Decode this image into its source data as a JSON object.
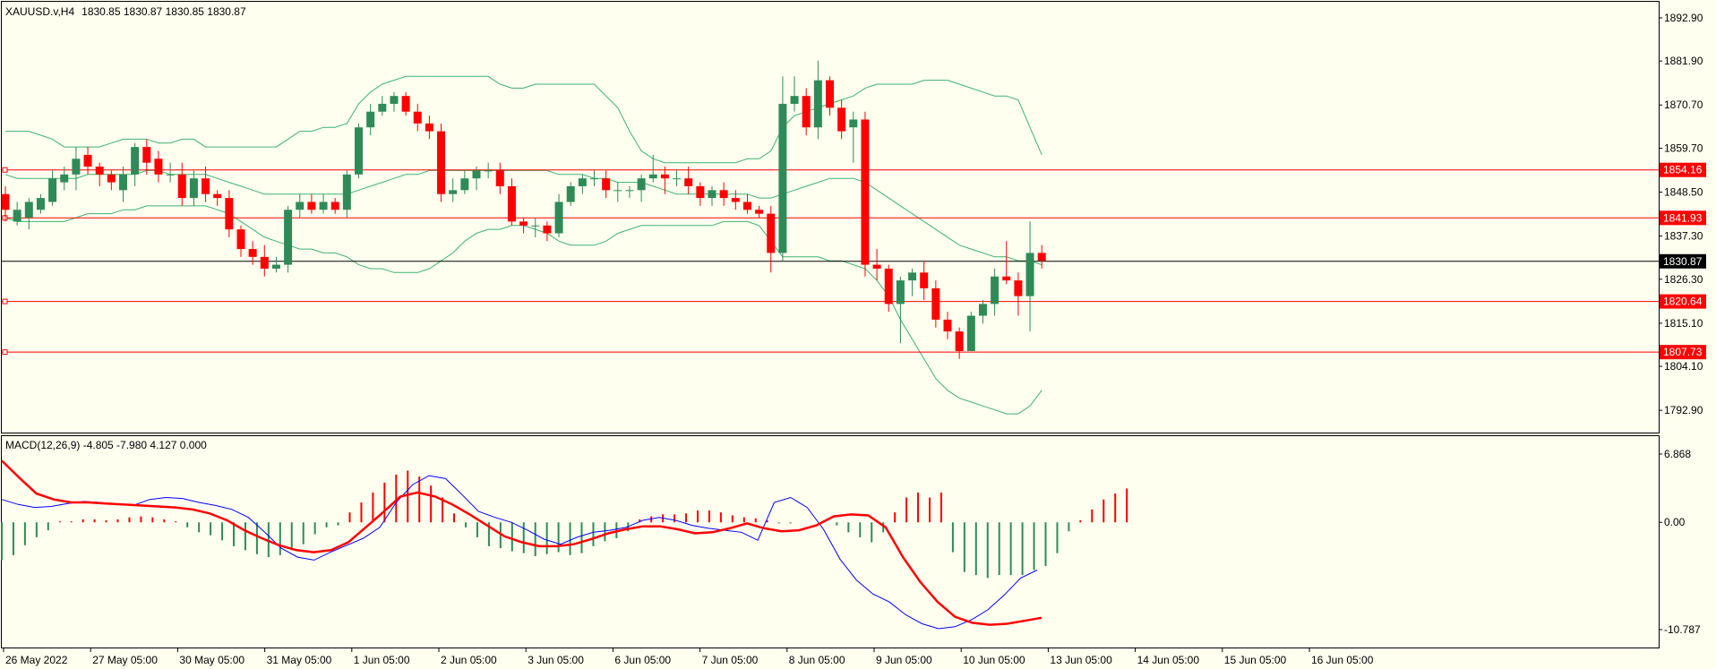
{
  "header": {
    "symbol": "XAUUSD.v,H4",
    "ohlc": "1830.85 1830.87 1830.85 1830.87"
  },
  "macd_label": "MACD(12,26,9) -4.805 -7.980 4.127 0.000",
  "colors": {
    "background": "#fffff0",
    "bull": "#2e8b57",
    "bear": "#ff0000",
    "bands": "#3cb371",
    "level": "#ff0000",
    "macd_line": "#0000ff",
    "signal_line": "#ff0000"
  },
  "chart_data": [
    {
      "type": "candlestick",
      "title": "XAUUSD.v,H4",
      "ylim": [
        1787,
        1897
      ],
      "y_ticks": [
        "1892.90",
        "1881.90",
        "1870.70",
        "1859.70",
        "1848.50",
        "1837.30",
        "1826.30",
        "1815.10",
        "1804.10",
        "1792.90"
      ],
      "x_tick_labels": [
        "26 May 2022",
        "27 May 05:00",
        "30 May 05:00",
        "31 May 05:00",
        "1 Jun 05:00",
        "2 Jun 05:00",
        "3 Jun 05:00",
        "6 Jun 05:00",
        "7 Jun 05:00",
        "8 Jun 05:00",
        "9 Jun 05:00",
        "10 Jun 05:00",
        "13 Jun 05:00",
        "14 Jun 05:00",
        "15 Jun 05:00",
        "16 Jun 05:00"
      ],
      "current_price": "1830.87",
      "levels": [
        "1854.16",
        "1841.93",
        "1820.64",
        "1807.73"
      ],
      "candles": [
        [
          1848,
          1844,
          1850,
          1841
        ],
        [
          1841,
          1844,
          1846,
          1840
        ],
        [
          1842,
          1846,
          1847,
          1839
        ],
        [
          1844,
          1847,
          1848,
          1843
        ],
        [
          1846,
          1852,
          1854,
          1845
        ],
        [
          1851,
          1853,
          1855,
          1849
        ],
        [
          1853,
          1857,
          1860,
          1849
        ],
        [
          1858,
          1855,
          1860,
          1853
        ],
        [
          1855,
          1853,
          1856,
          1850
        ],
        [
          1853,
          1851,
          1854,
          1849
        ],
        [
          1849,
          1853,
          1855,
          1846
        ],
        [
          1853,
          1860,
          1861,
          1850
        ],
        [
          1860,
          1856,
          1862,
          1853
        ],
        [
          1857,
          1853,
          1859,
          1851
        ],
        [
          1853,
          1853,
          1856,
          1851
        ],
        [
          1853,
          1847,
          1856,
          1845
        ],
        [
          1847,
          1852,
          1854,
          1845
        ],
        [
          1852,
          1848,
          1855,
          1846
        ],
        [
          1848,
          1847,
          1849,
          1845
        ],
        [
          1847,
          1839,
          1849,
          1837
        ],
        [
          1839,
          1834,
          1840,
          1832
        ],
        [
          1834,
          1832,
          1836,
          1830
        ],
        [
          1832,
          1829,
          1835,
          1827
        ],
        [
          1829,
          1830,
          1832,
          1828
        ],
        [
          1830,
          1844,
          1845,
          1828
        ],
        [
          1844,
          1846,
          1848,
          1842
        ],
        [
          1846,
          1844,
          1848,
          1843
        ],
        [
          1844,
          1846,
          1848,
          1843
        ],
        [
          1846,
          1844,
          1847,
          1843
        ],
        [
          1844,
          1853,
          1854,
          1842
        ],
        [
          1853,
          1865,
          1866,
          1852
        ],
        [
          1865,
          1869,
          1871,
          1863
        ],
        [
          1869,
          1871,
          1873,
          1868
        ],
        [
          1871,
          1873,
          1874,
          1869
        ],
        [
          1873,
          1869,
          1874,
          1868
        ],
        [
          1869,
          1866,
          1871,
          1864
        ],
        [
          1866,
          1864,
          1868,
          1862
        ],
        [
          1864,
          1848,
          1866,
          1846
        ],
        [
          1848,
          1849,
          1852,
          1846
        ],
        [
          1849,
          1852,
          1854,
          1848
        ],
        [
          1852,
          1854,
          1855,
          1849
        ],
        [
          1854,
          1854,
          1856,
          1852
        ],
        [
          1854,
          1850,
          1856,
          1848
        ],
        [
          1850,
          1841,
          1852,
          1840
        ],
        [
          1841,
          1840,
          1842,
          1838
        ],
        [
          1840,
          1840,
          1842,
          1837
        ],
        [
          1840,
          1838,
          1841,
          1836
        ],
        [
          1838,
          1846,
          1848,
          1837
        ],
        [
          1846,
          1850,
          1851,
          1845
        ],
        [
          1850,
          1852,
          1853,
          1848
        ],
        [
          1852,
          1852,
          1854,
          1850
        ],
        [
          1852,
          1849,
          1854,
          1847
        ],
        [
          1849,
          1849,
          1851,
          1846
        ],
        [
          1849,
          1849,
          1850,
          1847
        ],
        [
          1849,
          1852,
          1853,
          1846
        ],
        [
          1852,
          1853,
          1858,
          1851
        ],
        [
          1853,
          1852,
          1855,
          1848
        ],
        [
          1852,
          1852,
          1854,
          1850
        ],
        [
          1852,
          1850,
          1855,
          1848
        ],
        [
          1850,
          1847,
          1851,
          1845
        ],
        [
          1847,
          1849,
          1850,
          1845
        ],
        [
          1849,
          1847,
          1851,
          1845
        ],
        [
          1847,
          1846,
          1849,
          1844
        ],
        [
          1846,
          1844,
          1848,
          1843
        ],
        [
          1844,
          1843,
          1845,
          1842
        ],
        [
          1843,
          1833,
          1845,
          1828
        ],
        [
          1833,
          1871,
          1878,
          1831
        ],
        [
          1871,
          1873,
          1878,
          1869
        ],
        [
          1873,
          1865,
          1875,
          1863
        ],
        [
          1865,
          1877,
          1882,
          1862
        ],
        [
          1877,
          1870,
          1878,
          1868
        ],
        [
          1870,
          1864,
          1872,
          1862
        ],
        [
          1865,
          1867,
          1869,
          1856
        ],
        [
          1867,
          1830,
          1869,
          1827
        ],
        [
          1830,
          1829,
          1834,
          1826
        ],
        [
          1829,
          1820,
          1830,
          1818
        ],
        [
          1820,
          1826,
          1827,
          1810
        ],
        [
          1826,
          1828,
          1829,
          1822
        ],
        [
          1828,
          1824,
          1831,
          1821
        ],
        [
          1824,
          1816,
          1826,
          1814
        ],
        [
          1816,
          1813,
          1818,
          1811
        ],
        [
          1813,
          1808,
          1814,
          1806
        ],
        [
          1808,
          1817,
          1818,
          1808
        ],
        [
          1817,
          1820,
          1821,
          1815
        ],
        [
          1820,
          1827,
          1829,
          1817
        ],
        [
          1827,
          1826,
          1836,
          1825
        ],
        [
          1826,
          1822,
          1828,
          1817
        ],
        [
          1822,
          1833,
          1841,
          1813
        ],
        [
          1833,
          1831,
          1835,
          1829
        ]
      ],
      "bollinger": {
        "upper": [
          1864,
          1864,
          1864,
          1863,
          1862,
          1860,
          1860,
          1860,
          1860,
          1861,
          1862,
          1862,
          1862,
          1861,
          1861,
          1862,
          1862,
          1860,
          1860,
          1860,
          1860,
          1860,
          1860,
          1860,
          1862,
          1864,
          1864,
          1865,
          1865,
          1866,
          1871,
          1874,
          1876,
          1877,
          1878,
          1878,
          1878,
          1878,
          1878,
          1878,
          1878,
          1878,
          1876,
          1875,
          1875,
          1876,
          1876,
          1876,
          1876,
          1876,
          1876,
          1873,
          1870,
          1864,
          1859,
          1857,
          1856,
          1856,
          1856,
          1856,
          1856,
          1856,
          1856,
          1857,
          1857,
          1859,
          1865,
          1868,
          1869,
          1870,
          1871,
          1872,
          1873,
          1875,
          1876,
          1876,
          1876,
          1876,
          1877,
          1877,
          1877,
          1876,
          1875,
          1874,
          1873,
          1873,
          1872,
          1865,
          1858
        ],
        "middle": [
          1853,
          1852,
          1852,
          1852,
          1852,
          1852,
          1852,
          1853,
          1853,
          1853,
          1853,
          1853,
          1854,
          1854,
          1853,
          1853,
          1853,
          1853,
          1852,
          1851,
          1850,
          1849,
          1848,
          1848,
          1848,
          1848,
          1848,
          1848,
          1848,
          1848,
          1849,
          1850,
          1851,
          1852,
          1853,
          1853,
          1854,
          1854,
          1854,
          1854,
          1854,
          1854,
          1854,
          1854,
          1854,
          1854,
          1854,
          1853,
          1853,
          1853,
          1852,
          1852,
          1851,
          1851,
          1851,
          1850,
          1849,
          1848,
          1848,
          1848,
          1848,
          1848,
          1848,
          1848,
          1847,
          1847,
          1848,
          1849,
          1850,
          1851,
          1852,
          1852,
          1852,
          1851,
          1849,
          1847,
          1845,
          1843,
          1841,
          1839,
          1837,
          1835,
          1834,
          1833,
          1832,
          1832,
          1831,
          1831,
          1830
        ],
        "lower": [
          1842,
          1841,
          1841,
          1841,
          1841,
          1841,
          1842,
          1843,
          1843,
          1843,
          1844,
          1844,
          1845,
          1845,
          1845,
          1845,
          1845,
          1845,
          1844,
          1843,
          1841,
          1839,
          1837,
          1836,
          1835,
          1834,
          1834,
          1833,
          1833,
          1832,
          1830,
          1829,
          1829,
          1828,
          1828,
          1828,
          1829,
          1831,
          1833,
          1836,
          1838,
          1839,
          1839,
          1840,
          1840,
          1839,
          1838,
          1836,
          1835,
          1835,
          1835,
          1836,
          1838,
          1839,
          1840,
          1840,
          1840,
          1840,
          1840,
          1840,
          1840,
          1841,
          1841,
          1841,
          1840,
          1836,
          1832,
          1832,
          1832,
          1832,
          1831,
          1831,
          1830,
          1829,
          1826,
          1822,
          1816,
          1811,
          1806,
          1801,
          1798,
          1796,
          1795,
          1794,
          1793,
          1792,
          1792,
          1794,
          1798
        ]
      }
    },
    {
      "type": "macd",
      "title": "MACD(12,26,9)",
      "ylim": [
        -10.787,
        6.868
      ],
      "y_ticks": [
        "6.868",
        "0.00",
        "-10.787"
      ],
      "histogram": [
        -3.8,
        -3.3,
        -2.3,
        -1.5,
        -0.8,
        0.1,
        0.1,
        0.3,
        0.3,
        0.2,
        0.3,
        0.5,
        0.6,
        0.5,
        0.3,
        0.1,
        -0.5,
        -1.0,
        -1.3,
        -1.8,
        -2.4,
        -2.8,
        -3.2,
        -3.5,
        -3.3,
        -2.8,
        -2.2,
        -1.2,
        -0.5,
        -0.3,
        1.0,
        2.0,
        3.0,
        4.0,
        4.8,
        5.2,
        4.6,
        3.7,
        2.5,
        0.9,
        -0.5,
        -1.5,
        -2.4,
        -2.6,
        -2.9,
        -3.1,
        -3.4,
        -3.2,
        -3.0,
        -3.3,
        -3.1,
        -2.4,
        -1.9,
        -1.6,
        -0.9,
        0.3,
        0.6,
        0.8,
        0.8,
        0.9,
        1.2,
        1.2,
        1.0,
        0.7,
        0.5,
        0.4,
        0.2,
        -0.1,
        -0.1,
        0.0,
        0.0,
        0.0,
        -0.3,
        -1.0,
        -1.5,
        -2.0,
        -1.0,
        1.0,
        2.5,
        3.0,
        2.5,
        3.0,
        -3.0,
        -5.0,
        -5.3,
        -5.6,
        -5.3,
        -5.3,
        -5.3,
        -4.8,
        -4.4,
        -3.1,
        -0.9,
        0.2,
        1.3,
        2.3,
        2.9,
        3.4
      ],
      "macd_line": [
        2.3,
        1.8,
        1.5,
        1.6,
        1.9,
        2.1,
        2.0,
        1.8,
        1.7,
        2.3,
        2.5,
        2.4,
        2.0,
        1.7,
        1.3,
        0.5,
        -1.0,
        -2.6,
        -3.5,
        -3.8,
        -3.0,
        -2.3,
        -1.6,
        -0.5,
        2.0,
        3.8,
        4.7,
        4.4,
        2.8,
        1.1,
        0.5,
        0.0,
        -0.8,
        -1.7,
        -2.2,
        -1.5,
        -1.0,
        -0.8,
        -0.5,
        0.2,
        0.5,
        0.2,
        -0.3,
        -0.6,
        -0.8,
        -1.0,
        -1.8,
        2.0,
        2.5,
        1.5,
        -0.7,
        -3.7,
        -5.8,
        -7.2,
        -8.0,
        -9.3,
        -10.2,
        -10.7,
        -10.5,
        -9.8,
        -8.8,
        -7.3,
        -5.6,
        -4.8
      ],
      "signal_line": [
        6.2,
        4.5,
        2.9,
        2.3,
        2.0,
        2.0,
        1.9,
        1.8,
        1.7,
        1.6,
        1.5,
        1.3,
        0.9,
        0.2,
        -0.8,
        -1.6,
        -2.3,
        -2.8,
        -3.0,
        -2.8,
        -2.0,
        -0.5,
        1.0,
        2.6,
        3.0,
        2.6,
        1.8,
        0.8,
        -0.3,
        -1.4,
        -2.0,
        -2.4,
        -2.4,
        -2.2,
        -1.7,
        -1.1,
        -0.7,
        -0.4,
        -0.4,
        -0.7,
        -1.1,
        -1.0,
        -0.6,
        -0.1,
        -0.6,
        -0.9,
        -0.8,
        -0.3,
        0.6,
        0.8,
        0.7,
        -0.5,
        -3.5,
        -6.0,
        -8.0,
        -9.5,
        -10.1,
        -10.3,
        -10.2,
        -9.9,
        -9.6
      ]
    }
  ]
}
